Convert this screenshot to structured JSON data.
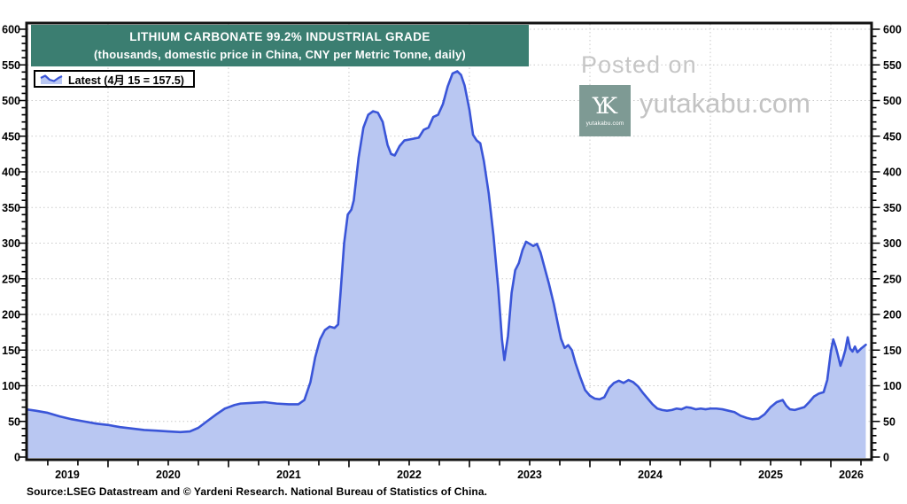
{
  "header": {
    "title": "LITHIUM CARBONATE 99.2% INDUSTRIAL GRADE",
    "subtitle": "(thousands, domestic price in China, CNY per Metric Tonne, daily)",
    "banner_color": "#3b7e71"
  },
  "legend": {
    "label": "Latest (4月 15 = 157.5)"
  },
  "watermark": {
    "posted_on": "Posted on",
    "site": "yutakabu.com",
    "logo_monogram": "YK",
    "logo_caption": "yutakabu.com",
    "logo_color": "#7e9a94",
    "text_color": "#c5c5c5"
  },
  "source": {
    "text": "Source:LSEG Datastream and © Yardeni Research. National Bureau of Statistics of China."
  },
  "chart_data": {
    "type": "area",
    "title": "LITHIUM CARBONATE 99.2% INDUSTRIAL GRADE",
    "subtitle": "(thousands, domestic price in China, CNY per Metric Tonne, daily)",
    "series_name": "Lithium carbonate 99.2% industrial grade, China domestic price",
    "units": "thousands CNY per Metric Tonne",
    "latest": {
      "date_label": "4月 15",
      "value": 157.5
    },
    "ylim": [
      0,
      600
    ],
    "y_tick_major": 50,
    "y_tick_minor": 10,
    "x_range": [
      2019.324,
      2026.338
    ],
    "x_minor_tick_interval": 0.25,
    "year_labels": [
      "2019",
      "2020",
      "2021",
      "2022",
      "2023",
      "2024",
      "2025",
      "2026"
    ],
    "grid": "dotted",
    "legend_position": "top-left",
    "line_color": "#3a55d8",
    "fill_color": "#b9c7f2",
    "grid_color": "#c9c9c9",
    "frame_color": "#111111",
    "x": [
      2019.32,
      2019.4,
      2019.5,
      2019.6,
      2019.7,
      2019.8,
      2019.9,
      2020.0,
      2020.1,
      2020.2,
      2020.3,
      2020.4,
      2020.5,
      2020.6,
      2020.68,
      2020.75,
      2020.82,
      2020.9,
      2020.97,
      2021.05,
      2021.1,
      2021.2,
      2021.3,
      2021.4,
      2021.5,
      2021.58,
      2021.63,
      2021.68,
      2021.72,
      2021.76,
      2021.8,
      2021.84,
      2021.88,
      2021.91,
      2021.93,
      2021.96,
      2021.99,
      2022.02,
      2022.04,
      2022.08,
      2022.12,
      2022.16,
      2022.2,
      2022.24,
      2022.28,
      2022.32,
      2022.35,
      2022.38,
      2022.42,
      2022.46,
      2022.52,
      2022.58,
      2022.62,
      2022.66,
      2022.7,
      2022.74,
      2022.78,
      2022.82,
      2022.86,
      2022.9,
      2022.93,
      2022.96,
      2023.0,
      2023.03,
      2023.06,
      2023.09,
      2023.12,
      2023.16,
      2023.2,
      2023.24,
      2023.27,
      2023.29,
      2023.32,
      2023.35,
      2023.38,
      2023.41,
      2023.44,
      2023.47,
      2023.5,
      2023.53,
      2023.56,
      2023.59,
      2023.62,
      2023.66,
      2023.7,
      2023.73,
      2023.76,
      2023.79,
      2023.82,
      2023.85,
      2023.88,
      2023.92,
      2023.96,
      2024.0,
      2024.04,
      2024.08,
      2024.12,
      2024.16,
      2024.2,
      2024.24,
      2024.28,
      2024.32,
      2024.36,
      2024.4,
      2024.44,
      2024.48,
      2024.52,
      2024.56,
      2024.6,
      2024.64,
      2024.68,
      2024.72,
      2024.76,
      2024.8,
      2024.84,
      2024.88,
      2024.92,
      2024.96,
      2025.0,
      2025.05,
      2025.1,
      2025.15,
      2025.2,
      2025.25,
      2025.3,
      2025.35,
      2025.4,
      2025.45,
      2025.5,
      2025.55,
      2025.6,
      2025.63,
      2025.66,
      2025.7,
      2025.74,
      2025.78,
      2025.82,
      2025.86,
      2025.9,
      2025.94,
      2025.97,
      2026.0,
      2026.02,
      2026.04,
      2026.06,
      2026.08,
      2026.1,
      2026.12,
      2026.14,
      2026.16,
      2026.18,
      2026.2,
      2026.22,
      2026.25,
      2026.29
    ],
    "values": [
      67,
      65,
      62,
      57,
      53,
      50,
      47,
      45,
      42,
      40,
      38,
      37,
      36,
      35,
      36,
      41,
      50,
      60,
      68,
      73,
      75,
      76,
      77,
      75,
      74,
      74,
      80,
      105,
      140,
      165,
      178,
      183,
      181,
      186,
      230,
      300,
      340,
      347,
      360,
      420,
      462,
      480,
      485,
      483,
      470,
      438,
      425,
      423,
      436,
      444,
      446,
      448,
      459,
      462,
      477,
      480,
      495,
      520,
      538,
      541,
      536,
      521,
      487,
      452,
      444,
      440,
      415,
      370,
      310,
      235,
      165,
      136,
      170,
      230,
      262,
      272,
      290,
      302,
      299,
      296,
      299,
      287,
      268,
      243,
      215,
      190,
      166,
      153,
      157,
      150,
      132,
      112,
      94,
      86,
      82,
      81,
      84,
      97,
      104,
      107,
      104,
      108,
      105,
      99,
      90,
      82,
      74,
      68,
      66,
      65,
      66,
      68,
      67,
      70,
      69,
      67,
      68,
      67,
      68,
      68,
      67,
      65,
      63,
      58,
      55,
      53,
      54,
      60,
      70,
      77,
      80,
      72,
      67,
      66,
      68,
      70,
      77,
      85,
      89,
      91,
      108,
      148,
      165,
      155,
      142,
      128,
      138,
      150,
      168,
      152,
      148,
      155,
      147,
      152,
      157.5
    ]
  }
}
